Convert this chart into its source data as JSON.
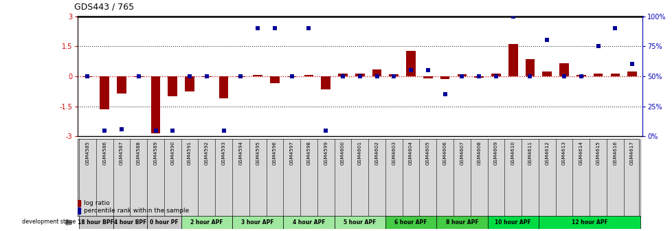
{
  "title": "GDS443 / 765",
  "samples": [
    "GSM4585",
    "GSM4586",
    "GSM4587",
    "GSM4588",
    "GSM4589",
    "GSM4590",
    "GSM4591",
    "GSM4592",
    "GSM4593",
    "GSM4594",
    "GSM4595",
    "GSM4596",
    "GSM4597",
    "GSM4598",
    "GSM4599",
    "GSM4600",
    "GSM4601",
    "GSM4602",
    "GSM4603",
    "GSM4604",
    "GSM4605",
    "GSM4606",
    "GSM4607",
    "GSM4608",
    "GSM4609",
    "GSM4610",
    "GSM4611",
    "GSM4612",
    "GSM4613",
    "GSM4614",
    "GSM4615",
    "GSM4616",
    "GSM4617"
  ],
  "log_ratio": [
    -0.05,
    -1.65,
    -0.85,
    -0.05,
    -2.85,
    -1.0,
    -0.75,
    -0.05,
    -1.1,
    -0.05,
    0.05,
    -0.35,
    -0.05,
    0.05,
    -0.65,
    0.15,
    0.15,
    0.35,
    0.1,
    1.25,
    -0.1,
    -0.15,
    0.1,
    -0.08,
    0.12,
    1.6,
    0.85,
    0.25,
    0.65,
    0.08,
    0.15,
    0.12,
    0.25
  ],
  "percentile_rank": [
    50,
    5,
    6,
    50,
    5,
    5,
    50,
    50,
    5,
    50,
    90,
    90,
    50,
    90,
    5,
    50,
    50,
    50,
    50,
    55,
    55,
    35,
    50,
    50,
    50,
    100,
    50,
    80,
    50,
    50,
    75,
    90,
    60
  ],
  "stages": [
    {
      "label": "18 hour BPF",
      "start": 0,
      "end": 2,
      "color": "#c8c8c8"
    },
    {
      "label": "4 hour BPF",
      "start": 2,
      "end": 4,
      "color": "#c8c8c8"
    },
    {
      "label": "0 hour PF",
      "start": 4,
      "end": 6,
      "color": "#c8c8c8"
    },
    {
      "label": "2 hour APF",
      "start": 6,
      "end": 9,
      "color": "#a0e8a0"
    },
    {
      "label": "3 hour APF",
      "start": 9,
      "end": 12,
      "color": "#a0e8a0"
    },
    {
      "label": "4 hour APF",
      "start": 12,
      "end": 15,
      "color": "#a0e8a0"
    },
    {
      "label": "5 hour APF",
      "start": 15,
      "end": 18,
      "color": "#a0e8a0"
    },
    {
      "label": "6 hour APF",
      "start": 18,
      "end": 21,
      "color": "#44cc44"
    },
    {
      "label": "8 hour APF",
      "start": 21,
      "end": 24,
      "color": "#44cc44"
    },
    {
      "label": "10 hour APF",
      "start": 24,
      "end": 27,
      "color": "#00dd44"
    },
    {
      "label": "12 hour APF",
      "start": 27,
      "end": 33,
      "color": "#00dd44"
    }
  ],
  "ylim": [
    -3,
    3
  ],
  "y2lim": [
    0,
    100
  ],
  "bar_color": "#990000",
  "dot_color": "#000099",
  "hline_color": "#cc0000",
  "dotted_color": "#333333",
  "background_color": "#ffffff",
  "fig_width": 9.79,
  "fig_height": 3.36,
  "dpi": 100
}
